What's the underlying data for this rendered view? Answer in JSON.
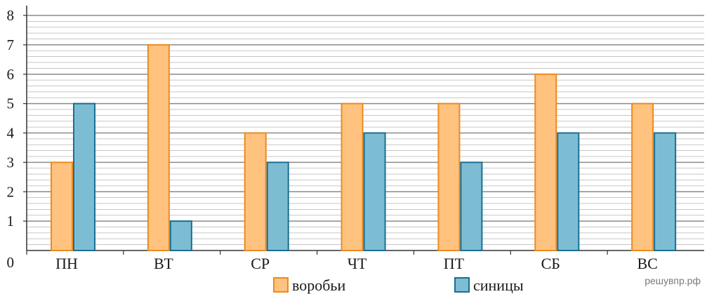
{
  "chart_data": {
    "type": "bar",
    "categories": [
      "ПН",
      "ВТ",
      "СР",
      "ЧТ",
      "ПТ",
      "СБ",
      "ВС"
    ],
    "series": [
      {
        "name": "воробьи",
        "values": [
          3,
          7,
          4,
          5,
          5,
          6,
          5
        ],
        "color": "#FFC27F",
        "stroke": "#EE8A1E"
      },
      {
        "name": "синицы",
        "values": [
          5,
          1,
          3,
          4,
          3,
          4,
          4
        ],
        "color": "#7DBDD3",
        "stroke": "#1A6F93"
      }
    ],
    "ylim": [
      0,
      8
    ],
    "yticks": [
      "0",
      "1",
      "2",
      "3",
      "4",
      "5",
      "6",
      "7",
      "8"
    ],
    "minor_grid_step": 0.2,
    "grid": true,
    "legend_position": "bottom"
  },
  "watermark": "решувпр.рф"
}
